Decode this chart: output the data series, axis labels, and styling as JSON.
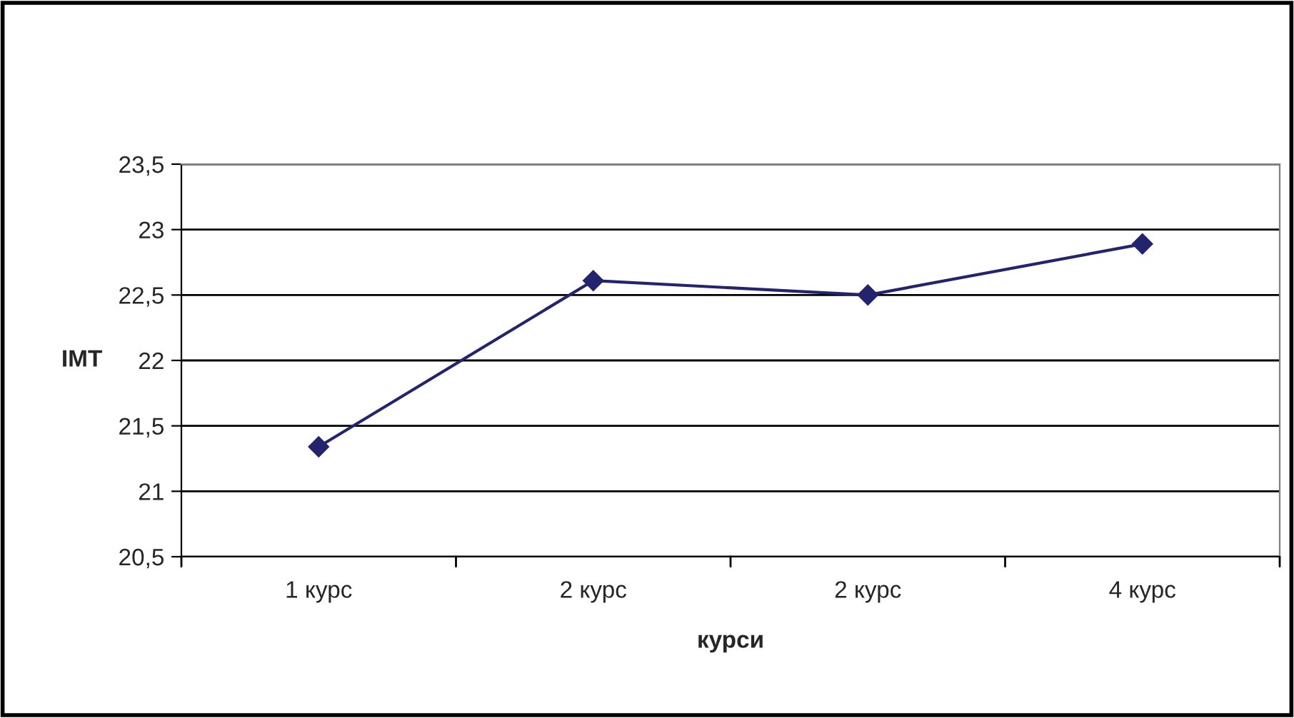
{
  "chart_data": {
    "type": "line",
    "xlabel": "курси",
    "ylabel": "IMT",
    "categories": [
      "1 курс",
      "2 курс",
      "2 курс",
      "4 курс"
    ],
    "series": [
      {
        "color": "#24246e",
        "values": [
          21.34,
          22.61,
          22.5,
          22.89
        ]
      }
    ],
    "ylim": [
      20.5,
      23.5
    ],
    "yticks": [
      {
        "value": 20.5,
        "label": "20,5"
      },
      21,
      {
        "value": 21.5,
        "label": "21,5"
      },
      22,
      {
        "value": 22.5,
        "label": "22,5"
      },
      23,
      {
        "value": 23.5,
        "label": "23,5"
      }
    ],
    "grid": "y",
    "marker": "diamond",
    "line_style": "solid"
  }
}
